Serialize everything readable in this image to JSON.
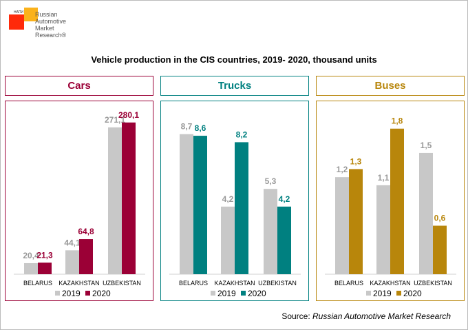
{
  "logo": {
    "small_text": "НАПИ",
    "text": "Russian\nAutomotive\nMarket\nResearch®"
  },
  "title": "Vehicle production in the CIS countries, 2019- 2020, thousand units",
  "source": {
    "label": "Source:",
    "name": "Russian Automotive Market Research"
  },
  "chart_data": [
    {
      "type": "bar",
      "title": "Cars",
      "color": "#9b0036",
      "categories": [
        "BELARUS",
        "KAZAKHSTAN",
        "UZBEKISTAN"
      ],
      "series": [
        {
          "name": "2019",
          "color": "#c8c8c8",
          "values": [
            20.4,
            44.1,
            271.1
          ],
          "labels": [
            "20,4",
            "44,1",
            "271,1"
          ]
        },
        {
          "name": "2020",
          "color": "#9b0036",
          "values": [
            21.3,
            64.8,
            280.1
          ],
          "labels": [
            "21,3",
            "64,8",
            "280,1"
          ]
        }
      ],
      "ylim": [
        0,
        318
      ],
      "legend": "bottom",
      "grid": false
    },
    {
      "type": "bar",
      "title": "Trucks",
      "color": "#008080",
      "categories": [
        "BELARUS",
        "KAZAKHSTAN",
        "UZBEKISTAN"
      ],
      "series": [
        {
          "name": "2019",
          "color": "#c8c8c8",
          "values": [
            8.7,
            4.2,
            5.3
          ],
          "labels": [
            "8,7",
            "4,2",
            "5,3"
          ]
        },
        {
          "name": "2020",
          "color": "#008080",
          "values": [
            8.6,
            8.2,
            4.2
          ],
          "labels": [
            "8,6",
            "8,2",
            "4,2"
          ]
        }
      ],
      "ylim": [
        0,
        10.7
      ],
      "legend": "bottom",
      "grid": false
    },
    {
      "type": "bar",
      "title": "Buses",
      "color": "#b8860b",
      "categories": [
        "BELARUS",
        "KAZAKHSTAN",
        "UZBEKISTAN"
      ],
      "series": [
        {
          "name": "2019",
          "color": "#c8c8c8",
          "values": [
            1.2,
            1.1,
            1.5
          ],
          "labels": [
            "1,2",
            "1,1",
            "1,5"
          ]
        },
        {
          "name": "2020",
          "color": "#b8860b",
          "values": [
            1.3,
            1.8,
            0.6
          ],
          "labels": [
            "1,3",
            "1,8",
            "0,6"
          ]
        }
      ],
      "ylim": [
        0,
        2.13
      ],
      "legend": "bottom",
      "grid": false
    }
  ]
}
